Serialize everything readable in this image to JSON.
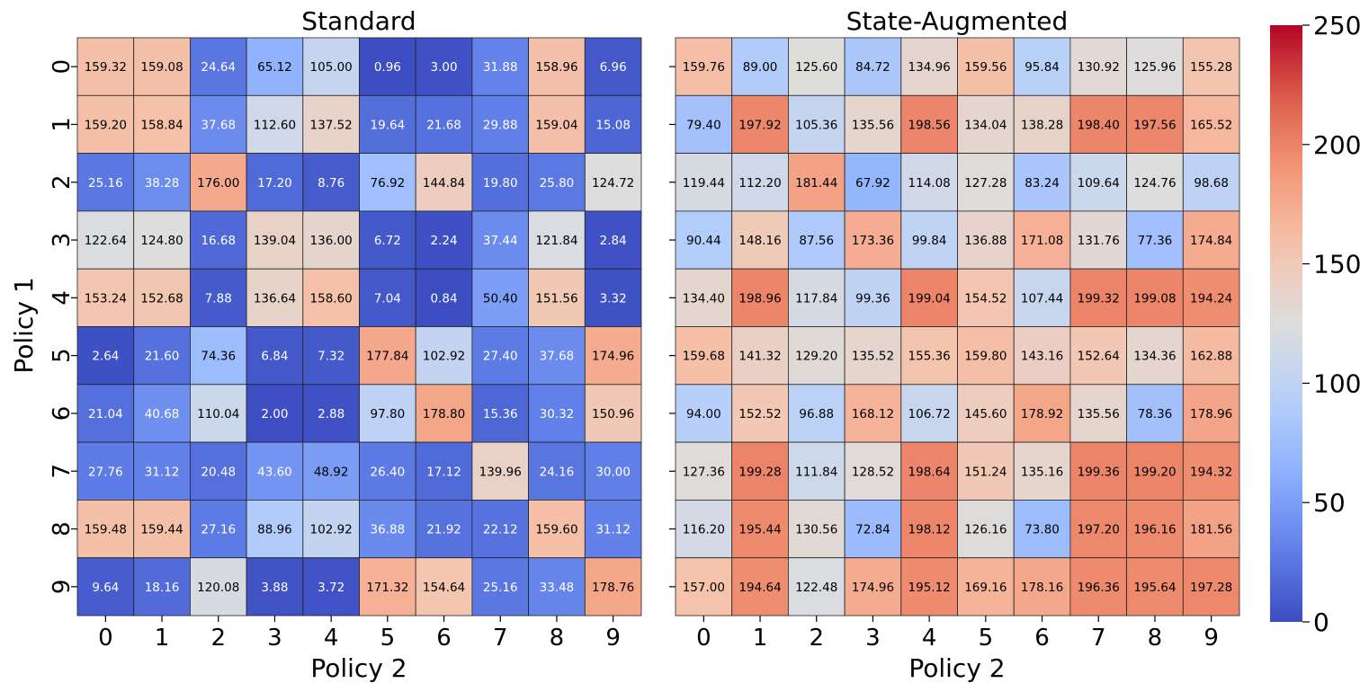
{
  "chart_data": [
    {
      "type": "heatmap",
      "title": "Standard",
      "xlabel": "Policy 2",
      "ylabel": "Policy 1",
      "x_ticks": [
        "0",
        "1",
        "2",
        "3",
        "4",
        "5",
        "6",
        "7",
        "8",
        "9"
      ],
      "y_ticks": [
        "0",
        "1",
        "2",
        "3",
        "4",
        "5",
        "6",
        "7",
        "8",
        "9"
      ],
      "values": [
        [
          159.32,
          159.08,
          24.64,
          65.12,
          105.0,
          0.96,
          3.0,
          31.88,
          158.96,
          6.96
        ],
        [
          159.2,
          158.84,
          37.68,
          112.6,
          137.52,
          19.64,
          21.68,
          29.88,
          159.04,
          15.08
        ],
        [
          25.16,
          38.28,
          176.0,
          17.2,
          8.76,
          76.92,
          144.84,
          19.8,
          25.8,
          124.72
        ],
        [
          122.64,
          124.8,
          16.68,
          139.04,
          136.0,
          6.72,
          2.24,
          37.44,
          121.84,
          2.84
        ],
        [
          153.24,
          152.68,
          7.88,
          136.64,
          158.6,
          7.04,
          0.84,
          50.4,
          151.56,
          3.32
        ],
        [
          2.64,
          21.6,
          74.36,
          6.84,
          7.32,
          177.84,
          102.92,
          27.4,
          37.68,
          174.96
        ],
        [
          21.04,
          40.68,
          110.04,
          2.0,
          2.88,
          97.8,
          178.8,
          15.36,
          30.32,
          150.96
        ],
        [
          27.76,
          31.12,
          20.48,
          43.6,
          48.92,
          26.4,
          17.12,
          139.96,
          24.16,
          30.0
        ],
        [
          159.48,
          159.44,
          27.16,
          88.96,
          102.92,
          36.88,
          21.92,
          22.12,
          159.6,
          31.12
        ],
        [
          9.64,
          18.16,
          120.08,
          3.88,
          3.72,
          171.32,
          154.64,
          25.16,
          33.48,
          178.76
        ]
      ]
    },
    {
      "type": "heatmap",
      "title": "State-Augmented",
      "xlabel": "Policy 2",
      "ylabel": "",
      "x_ticks": [
        "0",
        "1",
        "2",
        "3",
        "4",
        "5",
        "6",
        "7",
        "8",
        "9"
      ],
      "y_ticks": [],
      "values": [
        [
          159.76,
          89.0,
          125.6,
          84.72,
          134.96,
          159.56,
          95.84,
          130.92,
          125.96,
          155.28
        ],
        [
          79.4,
          197.92,
          105.36,
          135.56,
          198.56,
          134.04,
          138.28,
          198.4,
          197.56,
          165.52
        ],
        [
          119.44,
          112.2,
          181.44,
          67.92,
          114.08,
          127.28,
          83.24,
          109.64,
          124.76,
          98.68
        ],
        [
          90.44,
          148.16,
          87.56,
          173.36,
          99.84,
          136.88,
          171.08,
          131.76,
          77.36,
          174.84
        ],
        [
          134.4,
          198.96,
          117.84,
          99.36,
          199.04,
          154.52,
          107.44,
          199.32,
          199.08,
          194.24
        ],
        [
          159.68,
          141.32,
          129.2,
          135.52,
          155.36,
          159.8,
          143.16,
          152.64,
          134.36,
          162.88
        ],
        [
          94.0,
          152.52,
          96.88,
          168.12,
          106.72,
          145.6,
          178.92,
          135.56,
          78.36,
          178.96
        ],
        [
          127.36,
          199.28,
          111.84,
          128.52,
          198.64,
          151.24,
          135.16,
          199.36,
          199.2,
          194.32
        ],
        [
          116.2,
          195.44,
          130.56,
          72.84,
          198.12,
          126.16,
          73.8,
          197.2,
          196.16,
          181.56
        ],
        [
          157.0,
          194.64,
          122.48,
          174.96,
          195.12,
          169.16,
          178.16,
          196.36,
          195.64,
          197.28
        ]
      ]
    }
  ],
  "colorbar": {
    "vmin": 0,
    "vmax": 250,
    "ticks": [
      "0",
      "50",
      "100",
      "150",
      "200",
      "250"
    ],
    "colormap": "coolwarm"
  }
}
